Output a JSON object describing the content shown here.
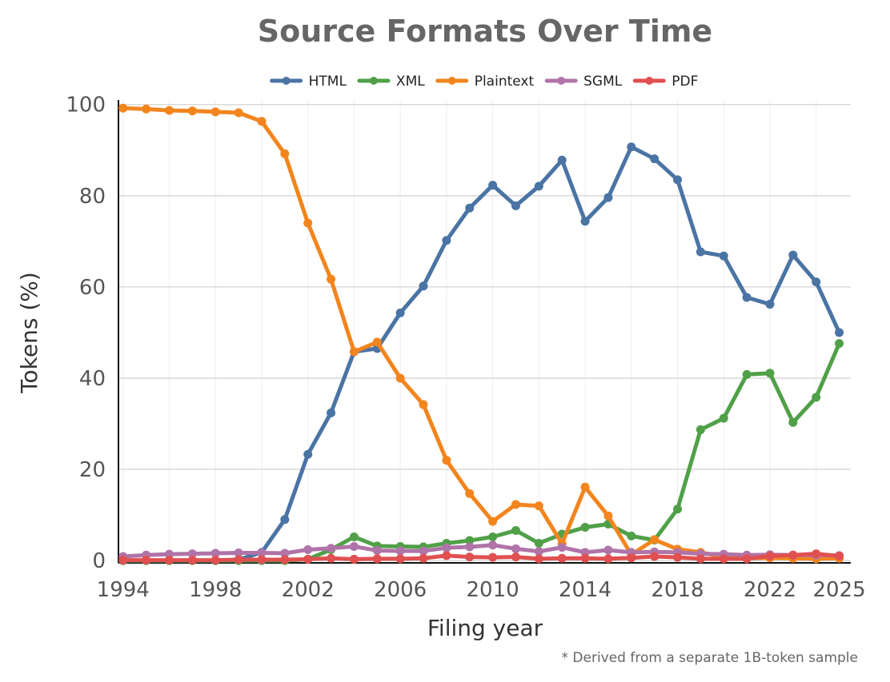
{
  "chart_data": {
    "type": "line",
    "title": "Source Formats Over Time",
    "xlabel": "Filing year",
    "ylabel": "Tokens (%)",
    "footnote": "* Derived from a separate 1B-token sample",
    "xlim": [
      1993.8,
      2025.5
    ],
    "ylim": [
      -0.5,
      101
    ],
    "xticks": [
      1994,
      1998,
      2002,
      2006,
      2010,
      2014,
      2018,
      2022,
      2025
    ],
    "yticks": [
      0,
      20,
      40,
      60,
      80,
      100
    ],
    "grid": true,
    "legend_position": "top",
    "x": [
      1994,
      1995,
      1996,
      1997,
      1998,
      1999,
      2000,
      2001,
      2002,
      2003,
      2004,
      2005,
      2006,
      2007,
      2008,
      2009,
      2010,
      2011,
      2012,
      2013,
      2014,
      2015,
      2016,
      2017,
      2018,
      2019,
      2020,
      2021,
      2022,
      2023,
      2024,
      2025
    ],
    "series": [
      {
        "name": "HTML",
        "color": "#4a74a4",
        "values": [
          0,
          0,
          0,
          0,
          0,
          0.2,
          1.8,
          9,
          23.3,
          32.4,
          45.8,
          46.5,
          54.3,
          60.2,
          70.2,
          77.3,
          82.3,
          77.8,
          82.1,
          87.8,
          74.4,
          79.6,
          90.7,
          88.1,
          83.5,
          67.7,
          66.8,
          57.7,
          56.2,
          67,
          61.1,
          50
        ]
      },
      {
        "name": "XML",
        "color": "#50a048",
        "values": [
          0,
          0,
          0,
          0,
          0,
          0,
          0,
          0,
          0.3,
          2.4,
          5.2,
          3.2,
          3.1,
          3,
          3.8,
          4.4,
          5.2,
          6.6,
          3.8,
          5.8,
          7.3,
          8,
          5.4,
          4.5,
          11.3,
          28.7,
          31.2,
          40.8,
          41.1,
          30.3,
          35.8,
          47.6
        ]
      },
      {
        "name": "Plaintext",
        "color": "#f2851e",
        "values": [
          99.2,
          99,
          98.7,
          98.6,
          98.4,
          98.2,
          96.3,
          89.2,
          74,
          61.7,
          45.8,
          47.9,
          40,
          34.2,
          22,
          14.7,
          8.6,
          12.3,
          12,
          3.7,
          16.1,
          9.8,
          1.3,
          4.6,
          2.5,
          1.8,
          0.8,
          0.5,
          0.6,
          0.5,
          0.4,
          0.5
        ]
      },
      {
        "name": "SGML",
        "color": "#b074a8",
        "values": [
          0.9,
          1.2,
          1.4,
          1.5,
          1.6,
          1.7,
          1.7,
          1.6,
          2.4,
          2.7,
          3.1,
          2.2,
          2.1,
          2.1,
          2.8,
          3,
          3.4,
          2.6,
          2,
          2.9,
          1.8,
          2.3,
          1.8,
          1.9,
          1.8,
          1.5,
          1.4,
          1.2,
          1.3,
          1.2,
          1.2,
          1.1
        ]
      },
      {
        "name": "PDF",
        "color": "#e05050",
        "values": [
          0.1,
          0.1,
          0.1,
          0.1,
          0.1,
          0.2,
          0.2,
          0.2,
          0.3,
          0.5,
          0.3,
          0.4,
          0.4,
          0.5,
          1.1,
          0.8,
          0.7,
          0.8,
          0.4,
          0.5,
          0.5,
          0.4,
          0.6,
          0.9,
          0.7,
          0.4,
          0.4,
          0.4,
          1,
          1.2,
          1.5,
          1
        ]
      }
    ]
  }
}
